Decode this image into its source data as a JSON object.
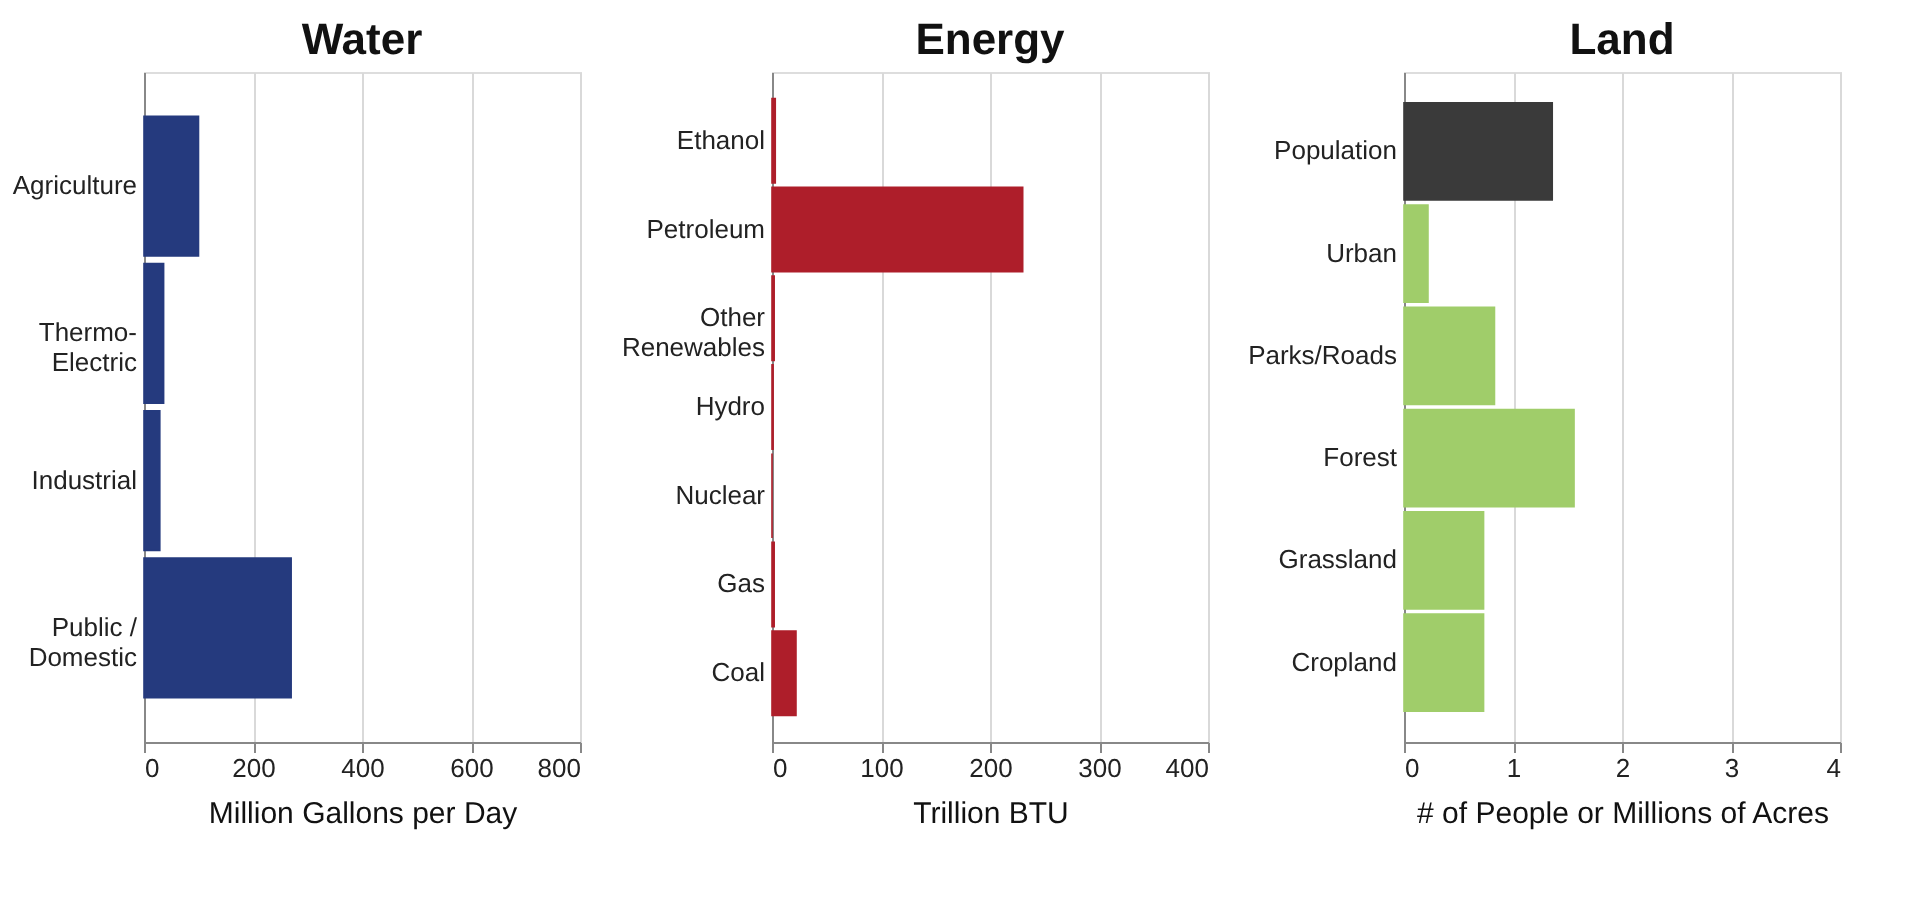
{
  "chart_data": [
    {
      "type": "bar",
      "orientation": "horizontal",
      "title": "Water",
      "xlabel": "Million Gallons per Day",
      "categories": [
        "Agriculture",
        "Thermo-\nElectric",
        "Industrial",
        "Public /\nDomestic"
      ],
      "values": [
        100,
        36,
        29,
        270
      ],
      "color": "#253a7e",
      "xlim": [
        0,
        800
      ],
      "xticks": [
        0,
        200,
        400,
        600,
        800
      ],
      "grid": "x"
    },
    {
      "type": "bar",
      "orientation": "horizontal",
      "title": "Energy",
      "xlabel": "Trillion BTU",
      "categories": [
        "Ethanol",
        "Petroleum",
        "Other\nRenewables",
        "Hydro",
        "Nuclear",
        "Gas",
        "Coal"
      ],
      "values": [
        3,
        230,
        2,
        1,
        0,
        2,
        22
      ],
      "color": "#ae1e2a",
      "xlim": [
        0,
        400
      ],
      "xticks": [
        0,
        100,
        200,
        300,
        400
      ],
      "grid": "x"
    },
    {
      "type": "bar",
      "orientation": "horizontal",
      "title": "Land",
      "xlabel": "# of People or Millions of Acres",
      "categories": [
        "Population",
        "Urban",
        "Parks/Roads",
        "Forest",
        "Grassland",
        "Cropland"
      ],
      "values": [
        1.36,
        0.22,
        0.83,
        1.56,
        0.73,
        0.73
      ],
      "colors": [
        "#3a3a3a",
        "#a0cd6a",
        "#a0cd6a",
        "#a0cd6a",
        "#a0cd6a",
        "#a0cd6a"
      ],
      "xlim": [
        0,
        4
      ],
      "xticks": [
        0,
        1,
        2,
        3,
        4
      ],
      "grid": "x"
    }
  ]
}
